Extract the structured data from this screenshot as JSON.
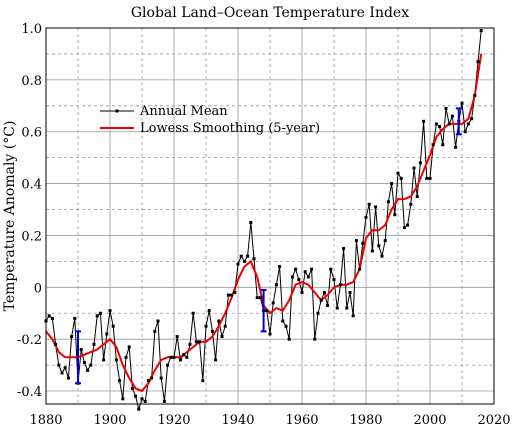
{
  "chart_data": {
    "type": "line",
    "title": "Global Land–Ocean Temperature Index",
    "xlabel": "",
    "ylabel": "Temperature Anomaly (°C)",
    "xlim": [
      1880,
      2020
    ],
    "ylim": [
      -0.45,
      1.0
    ],
    "x_ticks": [
      1880,
      1900,
      1920,
      1940,
      1960,
      1980,
      2000,
      2020
    ],
    "y_ticks": [
      -0.4,
      -0.2,
      0,
      0.2,
      0.4,
      0.6,
      0.8,
      1.0
    ],
    "y_tick_labels": [
      "-0.4",
      "-0.2",
      "0",
      "0.2",
      "0.4",
      "0.6",
      "0.8",
      "1.0"
    ],
    "grid": true,
    "legend_position": "upper-left",
    "colors": {
      "annual": "#000000",
      "smooth": "#ee0000",
      "error": "#0000dd",
      "grid": "#999999"
    },
    "series": [
      {
        "name": "Annual Mean",
        "style": "line-markers",
        "x": [
          1880,
          1881,
          1882,
          1883,
          1884,
          1885,
          1886,
          1887,
          1888,
          1889,
          1890,
          1891,
          1892,
          1893,
          1894,
          1895,
          1896,
          1897,
          1898,
          1899,
          1900,
          1901,
          1902,
          1903,
          1904,
          1905,
          1906,
          1907,
          1908,
          1909,
          1910,
          1911,
          1912,
          1913,
          1914,
          1915,
          1916,
          1917,
          1918,
          1919,
          1920,
          1921,
          1922,
          1923,
          1924,
          1925,
          1926,
          1927,
          1928,
          1929,
          1930,
          1931,
          1932,
          1933,
          1934,
          1935,
          1936,
          1937,
          1938,
          1939,
          1940,
          1941,
          1942,
          1943,
          1944,
          1945,
          1946,
          1947,
          1948,
          1949,
          1950,
          1951,
          1952,
          1953,
          1954,
          1955,
          1956,
          1957,
          1958,
          1959,
          1960,
          1961,
          1962,
          1963,
          1964,
          1965,
          1966,
          1967,
          1968,
          1969,
          1970,
          1971,
          1972,
          1973,
          1974,
          1975,
          1976,
          1977,
          1978,
          1979,
          1980,
          1981,
          1982,
          1983,
          1984,
          1985,
          1986,
          1987,
          1988,
          1989,
          1990,
          1991,
          1992,
          1993,
          1994,
          1995,
          1996,
          1997,
          1998,
          1999,
          2000,
          2001,
          2002,
          2003,
          2004,
          2005,
          2006,
          2007,
          2008,
          2009,
          2010,
          2011,
          2012,
          2013,
          2014,
          2015,
          2016
        ],
        "values": [
          -0.13,
          -0.11,
          -0.12,
          -0.22,
          -0.3,
          -0.33,
          -0.31,
          -0.35,
          -0.19,
          -0.12,
          -0.37,
          -0.24,
          -0.29,
          -0.32,
          -0.3,
          -0.22,
          -0.11,
          -0.1,
          -0.28,
          -0.18,
          -0.09,
          -0.15,
          -0.28,
          -0.36,
          -0.43,
          -0.27,
          -0.23,
          -0.39,
          -0.42,
          -0.47,
          -0.43,
          -0.44,
          -0.36,
          -0.35,
          -0.17,
          -0.13,
          -0.35,
          -0.44,
          -0.3,
          -0.27,
          -0.27,
          -0.19,
          -0.28,
          -0.26,
          -0.27,
          -0.22,
          -0.1,
          -0.21,
          -0.21,
          -0.36,
          -0.15,
          -0.09,
          -0.17,
          -0.28,
          -0.13,
          -0.19,
          -0.15,
          -0.03,
          -0.03,
          -0.02,
          0.09,
          0.12,
          0.1,
          0.12,
          0.25,
          0.11,
          -0.04,
          -0.04,
          -0.09,
          -0.09,
          -0.18,
          -0.06,
          0.01,
          0.08,
          -0.13,
          -0.15,
          -0.2,
          0.04,
          0.07,
          0.03,
          -0.02,
          0.06,
          0.04,
          0.07,
          -0.2,
          -0.1,
          -0.05,
          -0.02,
          -0.07,
          0.07,
          0.03,
          -0.08,
          0.01,
          0.15,
          -0.08,
          -0.02,
          -0.11,
          0.18,
          0.07,
          0.17,
          0.27,
          0.32,
          0.14,
          0.31,
          0.16,
          0.12,
          0.18,
          0.33,
          0.4,
          0.28,
          0.44,
          0.42,
          0.23,
          0.24,
          0.32,
          0.46,
          0.35,
          0.48,
          0.64,
          0.42,
          0.42,
          0.55,
          0.63,
          0.62,
          0.55,
          0.69,
          0.63,
          0.66,
          0.54,
          0.64,
          0.71,
          0.6,
          0.63,
          0.65,
          0.74,
          0.87,
          0.99
        ]
      },
      {
        "name": "Lowess Smoothing (5-year)",
        "style": "line",
        "x": [
          1880,
          1882,
          1884,
          1886,
          1888,
          1890,
          1892,
          1894,
          1896,
          1898,
          1900,
          1902,
          1904,
          1906,
          1908,
          1910,
          1912,
          1914,
          1916,
          1918,
          1920,
          1922,
          1924,
          1926,
          1928,
          1930,
          1932,
          1934,
          1936,
          1938,
          1940,
          1942,
          1944,
          1946,
          1948,
          1950,
          1952,
          1954,
          1956,
          1958,
          1960,
          1962,
          1964,
          1966,
          1968,
          1970,
          1972,
          1974,
          1976,
          1978,
          1980,
          1982,
          1984,
          1986,
          1988,
          1990,
          1992,
          1994,
          1996,
          1998,
          2000,
          2002,
          2004,
          2006,
          2008,
          2010,
          2012,
          2014,
          2016
        ],
        "values": [
          -0.17,
          -0.2,
          -0.25,
          -0.27,
          -0.27,
          -0.27,
          -0.26,
          -0.25,
          -0.24,
          -0.22,
          -0.2,
          -0.23,
          -0.3,
          -0.35,
          -0.39,
          -0.4,
          -0.37,
          -0.32,
          -0.28,
          -0.27,
          -0.27,
          -0.27,
          -0.25,
          -0.23,
          -0.21,
          -0.21,
          -0.19,
          -0.15,
          -0.1,
          -0.04,
          0.03,
          0.08,
          0.1,
          0.04,
          -0.07,
          -0.1,
          -0.08,
          -0.09,
          -0.05,
          0.01,
          0.02,
          0.01,
          -0.02,
          -0.05,
          -0.03,
          0.0,
          0.01,
          0.01,
          0.02,
          0.07,
          0.19,
          0.22,
          0.22,
          0.24,
          0.3,
          0.34,
          0.34,
          0.35,
          0.39,
          0.45,
          0.51,
          0.58,
          0.61,
          0.63,
          0.63,
          0.63,
          0.65,
          0.74,
          0.9
        ]
      }
    ],
    "error_bars": [
      {
        "x": 1890,
        "center": -0.27,
        "low": -0.37,
        "high": -0.17
      },
      {
        "x": 1948,
        "center": -0.09,
        "low": -0.17,
        "high": -0.01
      },
      {
        "x": 2009,
        "center": 0.64,
        "low": 0.59,
        "high": 0.69
      }
    ]
  }
}
